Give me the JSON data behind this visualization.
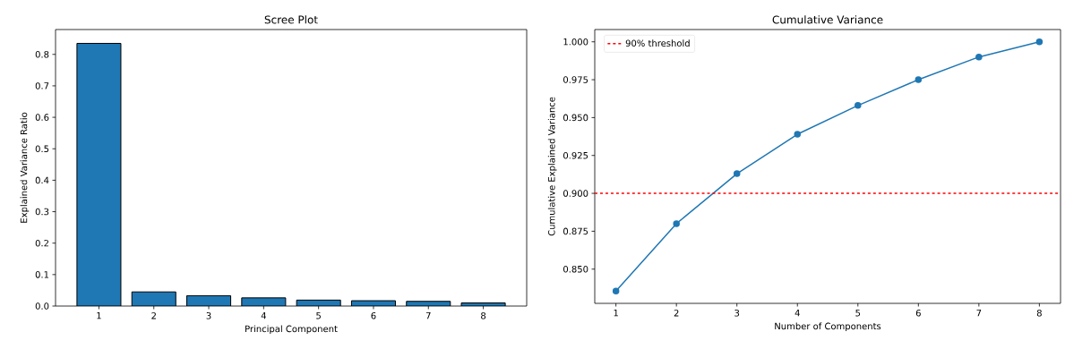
{
  "chart_data": [
    {
      "type": "bar",
      "title": "Scree Plot",
      "xlabel": "Principal Component",
      "ylabel": "Explained Variance Ratio",
      "categories": [
        "1",
        "2",
        "3",
        "4",
        "5",
        "6",
        "7",
        "8"
      ],
      "values": [
        0.835,
        0.045,
        0.033,
        0.026,
        0.019,
        0.017,
        0.015,
        0.01
      ],
      "color": "#1f77b4",
      "ylim": [
        0,
        0.879
      ],
      "yticks": [
        {
          "value": 0,
          "label": "0.0"
        },
        0.1,
        0.2,
        0.3,
        0.4,
        0.5,
        0.6,
        0.7,
        0.8
      ]
    },
    {
      "type": "line",
      "title": "Cumulative Variance",
      "xlabel": "Number of Components",
      "ylabel": "Cumulative Explained Variance",
      "x": [
        1,
        2,
        3,
        4,
        5,
        6,
        7,
        8
      ],
      "values": [
        0.8355,
        0.88,
        0.913,
        0.939,
        0.958,
        0.975,
        0.99,
        1.0
      ],
      "color": "#1f77b4",
      "marker": "circle",
      "line_style": "solid",
      "xlim": [
        0.65,
        8.35
      ],
      "xticks": [
        1,
        2,
        3,
        4,
        5,
        6,
        7,
        8
      ],
      "ylim": [
        0.8274,
        1.0081
      ],
      "yticks": [
        {
          "value": 0.85,
          "label": "0.850"
        },
        {
          "value": 0.875,
          "label": "0.875"
        },
        {
          "value": 0.9,
          "label": "0.900"
        },
        {
          "value": 0.925,
          "label": "0.925"
        },
        {
          "value": 0.95,
          "label": "0.950"
        },
        {
          "value": 0.975,
          "label": "0.975"
        },
        {
          "value": 1.0,
          "label": "1.000"
        }
      ],
      "ref_lines": [
        {
          "axis": "y",
          "value": 0.9,
          "label": "90% threshold",
          "color": "#ff0000",
          "line_style": "dashed"
        }
      ],
      "legend": "top left"
    }
  ]
}
